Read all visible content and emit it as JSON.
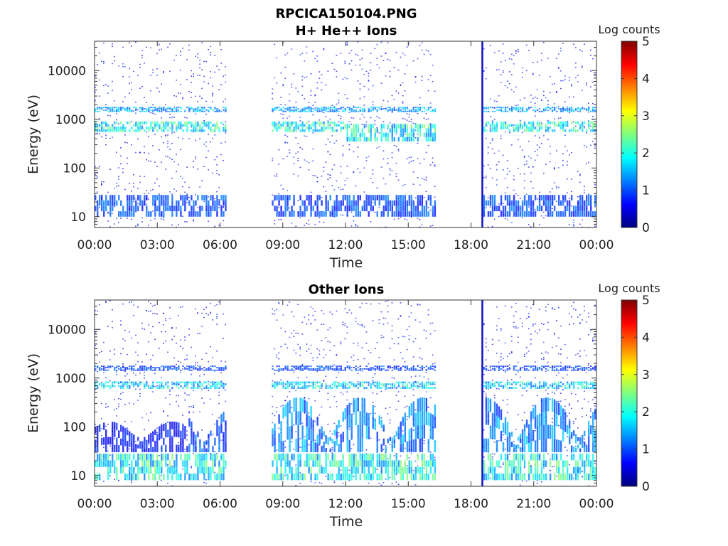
{
  "figure": {
    "title": "RPCICA150104.PNG"
  },
  "chart_data": [
    {
      "type": "heatmap",
      "title": "H+ He++ Ions",
      "xlabel": "Time",
      "ylabel": "Energy (eV)",
      "y_scale": "log",
      "ylim": [
        6,
        40000
      ],
      "x_ticks": [
        "00:00",
        "03:00",
        "06:00",
        "09:00",
        "12:00",
        "15:00",
        "18:00",
        "21:00",
        "00:00"
      ],
      "x_range_hours": [
        0,
        24
      ],
      "y_ticks": [
        {
          "value": 10,
          "label": "10"
        },
        {
          "value": 100,
          "label": "100"
        },
        {
          "value": 1000,
          "label": "1000"
        },
        {
          "value": 10000,
          "label": "10000"
        }
      ],
      "colorbar": {
        "label": "Log counts",
        "range": [
          0,
          5
        ],
        "ticks": [
          "0",
          "1",
          "2",
          "3",
          "4",
          "5"
        ],
        "colormap": "jet"
      },
      "data_intervals_hours": [
        [
          0.0,
          6.4
        ],
        [
          8.5,
          16.4
        ],
        [
          18.5,
          18.6
        ],
        [
          18.6,
          24.0
        ]
      ],
      "features": [
        {
          "band": "H+ peak",
          "energy_eV": [
            550,
            900
          ],
          "log_counts": 2.0
        },
        {
          "band": "He++ peak",
          "energy_eV": [
            1400,
            1800
          ],
          "log_counts": 1.5
        },
        {
          "band": "low energy",
          "energy_eV": [
            10,
            28
          ],
          "log_counts": 1.0
        },
        {
          "band": "spike at ~18:40",
          "energy_eV": [
            6,
            40000
          ],
          "log_counts": 0.3
        }
      ]
    },
    {
      "type": "heatmap",
      "title": "Other Ions",
      "xlabel": "Time",
      "ylabel": "Energy (eV)",
      "y_scale": "log",
      "ylim": [
        6,
        40000
      ],
      "x_ticks": [
        "00:00",
        "03:00",
        "06:00",
        "09:00",
        "12:00",
        "15:00",
        "18:00",
        "21:00",
        "00:00"
      ],
      "x_range_hours": [
        0,
        24
      ],
      "y_ticks": [
        {
          "value": 10,
          "label": "10"
        },
        {
          "value": 100,
          "label": "100"
        },
        {
          "value": 1000,
          "label": "1000"
        },
        {
          "value": 10000,
          "label": "10000"
        }
      ],
      "colorbar": {
        "label": "Log counts",
        "range": [
          0,
          5
        ],
        "ticks": [
          "0",
          "1",
          "2",
          "3",
          "4",
          "5"
        ],
        "colormap": "jet"
      },
      "data_intervals_hours": [
        [
          0.0,
          6.4
        ],
        [
          8.5,
          16.4
        ],
        [
          18.5,
          18.6
        ],
        [
          18.6,
          24.0
        ]
      ],
      "features": [
        {
          "band": "low energy",
          "energy_eV": [
            8,
            28
          ],
          "log_counts": 2.0
        },
        {
          "band": "heavy ion band",
          "energy_eV": [
            30,
            400
          ],
          "log_counts": 1.2
        },
        {
          "band": "band ~700 eV",
          "energy_eV": [
            600,
            850
          ],
          "log_counts": 1.8
        },
        {
          "band": "band ~1600 eV",
          "energy_eV": [
            1400,
            1800
          ],
          "log_counts": 1.0
        }
      ]
    }
  ]
}
